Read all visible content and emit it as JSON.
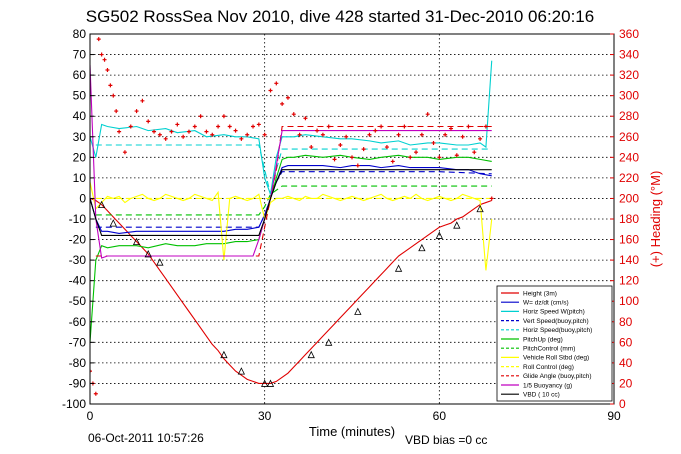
{
  "chart_data": {
    "type": "line",
    "title": "SG502 RossSea Nov 2010, dive 428 started 31-Dec-2010 06:20:16",
    "xlabel": "Time (minutes)",
    "ylabel_right": "(+) Heading (°M)",
    "xlim": [
      0,
      90
    ],
    "ylim": [
      -100,
      80
    ],
    "ylim_right": [
      0,
      360
    ],
    "x_ticks": [
      "0",
      "30",
      "60",
      "90"
    ],
    "y_ticks": [
      "80",
      "70",
      "60",
      "50",
      "40",
      "30",
      "20",
      "10",
      "0",
      "-10",
      "-20",
      "-30",
      "-40",
      "-50",
      "-60",
      "-70",
      "-80",
      "-90",
      "-100"
    ],
    "y2_ticks": [
      "360",
      "340",
      "320",
      "300",
      "280",
      "260",
      "240",
      "220",
      "200",
      "180",
      "160",
      "140",
      "120",
      "100",
      "80",
      "60",
      "40",
      "20",
      "0"
    ],
    "grid": true,
    "legend_position": "bottom-right",
    "footer_left": "06-Oct-2011 10:57:26",
    "footer_right": "VBD bias =0 cc",
    "legend": [
      {
        "label": "Height (3m)",
        "color": "#e00000",
        "dash": "solid"
      },
      {
        "label": "W= dz/dt (cm/s)",
        "color": "#0000cc",
        "dash": "solid"
      },
      {
        "label": "Horiz Speed W(pitch)",
        "color": "#00d0d0",
        "dash": "solid"
      },
      {
        "label": "Vert Speed(buoy,pitch)",
        "color": "#0000cc",
        "dash": "dashed"
      },
      {
        "label": "Horiz Speed(buoy,pitch)",
        "color": "#00d0d0",
        "dash": "dashed"
      },
      {
        "label": "PitchUp (deg)",
        "color": "#00c000",
        "dash": "solid"
      },
      {
        "label": "PitchControl (mm)",
        "color": "#00c000",
        "dash": "dashed"
      },
      {
        "label": "Vehicle Roll Stbd (deg)",
        "color": "#ffff00",
        "dash": "solid"
      },
      {
        "label": "Roll Control (deg)",
        "color": "#ffff00",
        "dash": "dashed"
      },
      {
        "label": "Glide Angle (buoy,pitch)",
        "color": "#e00000",
        "dash": "dashed"
      },
      {
        "label": "1/5 Buoyancy (g)",
        "color": "#c000c0",
        "dash": "solid"
      },
      {
        "label": "VBD ( 10 cc)",
        "color": "#000000",
        "dash": "solid"
      }
    ],
    "series": [
      {
        "name": "Height (3m)",
        "color": "#e00000",
        "style": "solid",
        "x": [
          0,
          1,
          2,
          3,
          4,
          5,
          6,
          7,
          8,
          9,
          10,
          11,
          12,
          13,
          14,
          15,
          16,
          17,
          18,
          19,
          20,
          21,
          22,
          23,
          24,
          25,
          26,
          27,
          28,
          29,
          30,
          31,
          32,
          33,
          34,
          35,
          36,
          37,
          38,
          39,
          40,
          41,
          42,
          43,
          44,
          45,
          46,
          47,
          48,
          49,
          50,
          51,
          52,
          53,
          54,
          55,
          56,
          57,
          58,
          59,
          60,
          61,
          62,
          63,
          64,
          65,
          66,
          67,
          68,
          69
        ],
        "y": [
          0,
          -1,
          -3,
          -6,
          -9,
          -12,
          -15,
          -18,
          -21,
          -24,
          -27,
          -31,
          -35,
          -39,
          -43,
          -47,
          -51,
          -55,
          -59,
          -63,
          -67,
          -71,
          -74,
          -78,
          -81,
          -84,
          -86,
          -88,
          -89,
          -90,
          -90,
          -90,
          -89,
          -87,
          -85,
          -82,
          -79,
          -76,
          -73,
          -70,
          -67,
          -64,
          -61,
          -58,
          -55,
          -52,
          -49,
          -46,
          -43,
          -40,
          -37,
          -34,
          -31,
          -28,
          -26,
          -24,
          -22,
          -20,
          -18,
          -16,
          -14,
          -13,
          -12,
          -10,
          -9,
          -7,
          -5,
          -3,
          -2,
          -1
        ]
      },
      {
        "name": "W= dz/dt (cm/s)",
        "color": "#0000cc",
        "style": "solid",
        "x": [
          0,
          1,
          2,
          3,
          5,
          8,
          10,
          13,
          15,
          18,
          20,
          23,
          25,
          27,
          29,
          30,
          31,
          32,
          33,
          34,
          35,
          37,
          40,
          43,
          45,
          48,
          50,
          53,
          55,
          58,
          60,
          63,
          65,
          67,
          69
        ],
        "y": [
          0,
          -10,
          -16,
          -16,
          -17,
          -16,
          -16,
          -16,
          -16,
          -16,
          -16,
          -16,
          -15,
          -15,
          -14,
          -8,
          0,
          8,
          15,
          16,
          16,
          16,
          16,
          15,
          16,
          16,
          15,
          16,
          15,
          15,
          15,
          14,
          14,
          12,
          11
        ]
      },
      {
        "name": "Horiz Speed W(pitch)",
        "color": "#00d0d0",
        "style": "solid",
        "x": [
          0,
          1,
          2,
          3,
          5,
          8,
          10,
          13,
          15,
          18,
          20,
          23,
          25,
          27,
          29,
          30,
          31,
          32,
          33,
          34,
          35,
          37,
          40,
          43,
          45,
          48,
          50,
          53,
          55,
          58,
          60,
          63,
          65,
          67,
          68,
          69
        ],
        "y": [
          30,
          20,
          36,
          35,
          34,
          35,
          33,
          34,
          32,
          33,
          30,
          31,
          30,
          30,
          29,
          10,
          2,
          20,
          30,
          30,
          30,
          31,
          30,
          29,
          29,
          28,
          27,
          28,
          26,
          27,
          27,
          26,
          26,
          27,
          25,
          67
        ]
      },
      {
        "name": "Vert Speed(buoy,pitch)",
        "color": "#0000cc",
        "style": "dashed",
        "x": [
          1,
          10,
          20,
          29,
          30,
          31,
          32,
          33,
          40,
          50,
          60,
          69
        ],
        "y": [
          -14,
          -14,
          -14,
          -14,
          -8,
          0,
          8,
          13,
          13,
          13,
          13,
          12
        ]
      },
      {
        "name": "Horiz Speed(buoy,pitch)",
        "color": "#00d0d0",
        "style": "dashed",
        "x": [
          1,
          10,
          20,
          29,
          30,
          31,
          32,
          33,
          40,
          50,
          60,
          69
        ],
        "y": [
          26,
          26,
          26,
          26,
          14,
          2,
          14,
          24,
          24,
          24,
          24,
          24
        ]
      },
      {
        "name": "PitchUp (deg)",
        "color": "#00c000",
        "style": "solid",
        "x": [
          0,
          1,
          2,
          3,
          5,
          8,
          10,
          13,
          15,
          18,
          20,
          23,
          25,
          27,
          29,
          30,
          31,
          32,
          33,
          34,
          35,
          37,
          40,
          43,
          45,
          48,
          50,
          53,
          55,
          58,
          60,
          63,
          65,
          67,
          69
        ],
        "y": [
          -70,
          -30,
          -23,
          -24,
          -23,
          -23,
          -24,
          -22,
          -23,
          -23,
          -22,
          -22,
          -21,
          -21,
          -20,
          -10,
          0,
          10,
          19,
          20,
          20,
          21,
          20,
          21,
          20,
          19,
          20,
          21,
          20,
          20,
          19,
          20,
          20,
          19,
          18
        ]
      },
      {
        "name": "PitchControl (mm)",
        "color": "#00c000",
        "style": "dashed",
        "x": [
          1,
          10,
          20,
          29,
          30,
          31,
          33,
          40,
          50,
          60,
          69
        ],
        "y": [
          -8,
          -8,
          -8,
          -8,
          -4,
          2,
          6,
          6,
          6,
          6,
          6
        ]
      },
      {
        "name": "Vehicle Roll Stbd (deg)",
        "color": "#ffff00",
        "style": "solid",
        "x": [
          0,
          1,
          2,
          3,
          4,
          5,
          6,
          7,
          8,
          9,
          10,
          11,
          12,
          13,
          14,
          15,
          16,
          17,
          18,
          19,
          20,
          21,
          22,
          23,
          24,
          25,
          26,
          27,
          28,
          29,
          30,
          31,
          32,
          33,
          34,
          35,
          36,
          37,
          38,
          39,
          40,
          41,
          42,
          43,
          44,
          45,
          46,
          47,
          48,
          49,
          50,
          51,
          52,
          53,
          54,
          55,
          56,
          57,
          58,
          59,
          60,
          61,
          62,
          63,
          64,
          65,
          66,
          67,
          68,
          69
        ],
        "y": [
          8,
          -5,
          -2,
          1,
          0,
          1,
          -2,
          0,
          1,
          2,
          0,
          -1,
          0,
          2,
          1,
          0,
          -1,
          0,
          2,
          1,
          0,
          -1,
          3,
          -30,
          0,
          1,
          0,
          -1,
          0,
          2,
          -10,
          -2,
          0,
          0,
          1,
          0,
          -1,
          1,
          0,
          0,
          2,
          1,
          0,
          -1,
          0,
          1,
          0,
          -1,
          0,
          1,
          2,
          0,
          -1,
          0,
          1,
          0,
          2,
          0,
          -1,
          0,
          1,
          0,
          -1,
          0,
          2,
          1,
          0,
          -1,
          -35,
          -10
        ]
      },
      {
        "name": "Roll Control (deg)",
        "color": "#ffff00",
        "style": "dashed",
        "x": [
          1,
          10,
          20,
          30,
          40,
          50,
          60,
          69
        ],
        "y": [
          0,
          0,
          0,
          0,
          0,
          0,
          0,
          0
        ]
      },
      {
        "name": "Glide Angle (buoy,pitch)",
        "color": "#e00000",
        "style": "dashed",
        "x": [
          1,
          10,
          20,
          29,
          30,
          31,
          32,
          33,
          40,
          50,
          60,
          69
        ],
        "y": [
          -28,
          -28,
          -28,
          -28,
          -14,
          0,
          14,
          35,
          35,
          35,
          35,
          35
        ]
      },
      {
        "name": "1/5 Buoyancy (g)",
        "color": "#c000c0",
        "style": "solid",
        "x": [
          0,
          1,
          2,
          3,
          5,
          10,
          20,
          28,
          29,
          30,
          31,
          32,
          33,
          34,
          40,
          50,
          60,
          69
        ],
        "y": [
          65,
          -10,
          -29,
          -28,
          -28,
          -28,
          -28,
          -28,
          -20,
          -10,
          0,
          16,
          33,
          33,
          33,
          33,
          33,
          33
        ]
      },
      {
        "name": "VBD ( 10 cc)",
        "color": "#000000",
        "style": "solid",
        "x": [
          0,
          1,
          2,
          3,
          5,
          10,
          20,
          29,
          30,
          31,
          32,
          33,
          34,
          40,
          50,
          60,
          69
        ],
        "y": [
          0,
          -10,
          -18,
          -18,
          -18,
          -18,
          -18,
          -18,
          -10,
          0,
          8,
          14,
          14,
          14,
          14,
          14,
          14
        ]
      },
      {
        "name": "Heading",
        "color": "#e00000",
        "style": "markers",
        "axis": "right",
        "x": [
          0,
          0.5,
          1,
          1.5,
          2,
          2.5,
          3,
          3.5,
          4,
          4.5,
          5,
          6,
          7,
          8,
          9,
          10,
          11,
          12,
          13,
          14,
          15,
          16,
          17,
          18,
          19,
          20,
          21,
          22,
          23,
          24,
          25,
          26,
          27,
          28,
          29,
          30,
          31,
          32,
          33,
          34,
          35,
          36,
          37,
          38,
          39,
          40,
          41,
          42,
          43,
          44,
          45,
          46,
          47,
          48,
          49,
          50,
          51,
          52,
          53,
          54,
          55,
          56,
          57,
          58,
          59,
          60,
          61,
          62,
          63,
          64,
          65,
          66,
          67,
          68,
          69
        ],
        "y": [
          32,
          20,
          10,
          355,
          340,
          335,
          325,
          310,
          300,
          285,
          265,
          245,
          270,
          285,
          295,
          275,
          265,
          262,
          258,
          265,
          272,
          260,
          265,
          270,
          280,
          265,
          262,
          270,
          280,
          270,
          266,
          258,
          262,
          270,
          272,
          262,
          305,
          312,
          292,
          298,
          282,
          262,
          278,
          250,
          266,
          262,
          270,
          238,
          252,
          260,
          240,
          232,
          248,
          262,
          266,
          270,
          250,
          236,
          262,
          270,
          240,
          245,
          262,
          282,
          254,
          240,
          262,
          268,
          242,
          260,
          270,
          245,
          258,
          270,
          200
        ]
      }
    ],
    "markers": {
      "name": "Height triangles",
      "x": [
        2,
        4,
        8,
        10,
        12,
        23,
        26,
        30,
        31,
        38,
        41,
        46,
        53,
        57,
        60,
        63,
        67
      ],
      "y": [
        -3,
        -12,
        -21,
        -27,
        -31,
        -76,
        -84,
        -90,
        -90,
        -76,
        -70,
        -55,
        -34,
        -24,
        -18,
        -13,
        -5
      ]
    }
  }
}
